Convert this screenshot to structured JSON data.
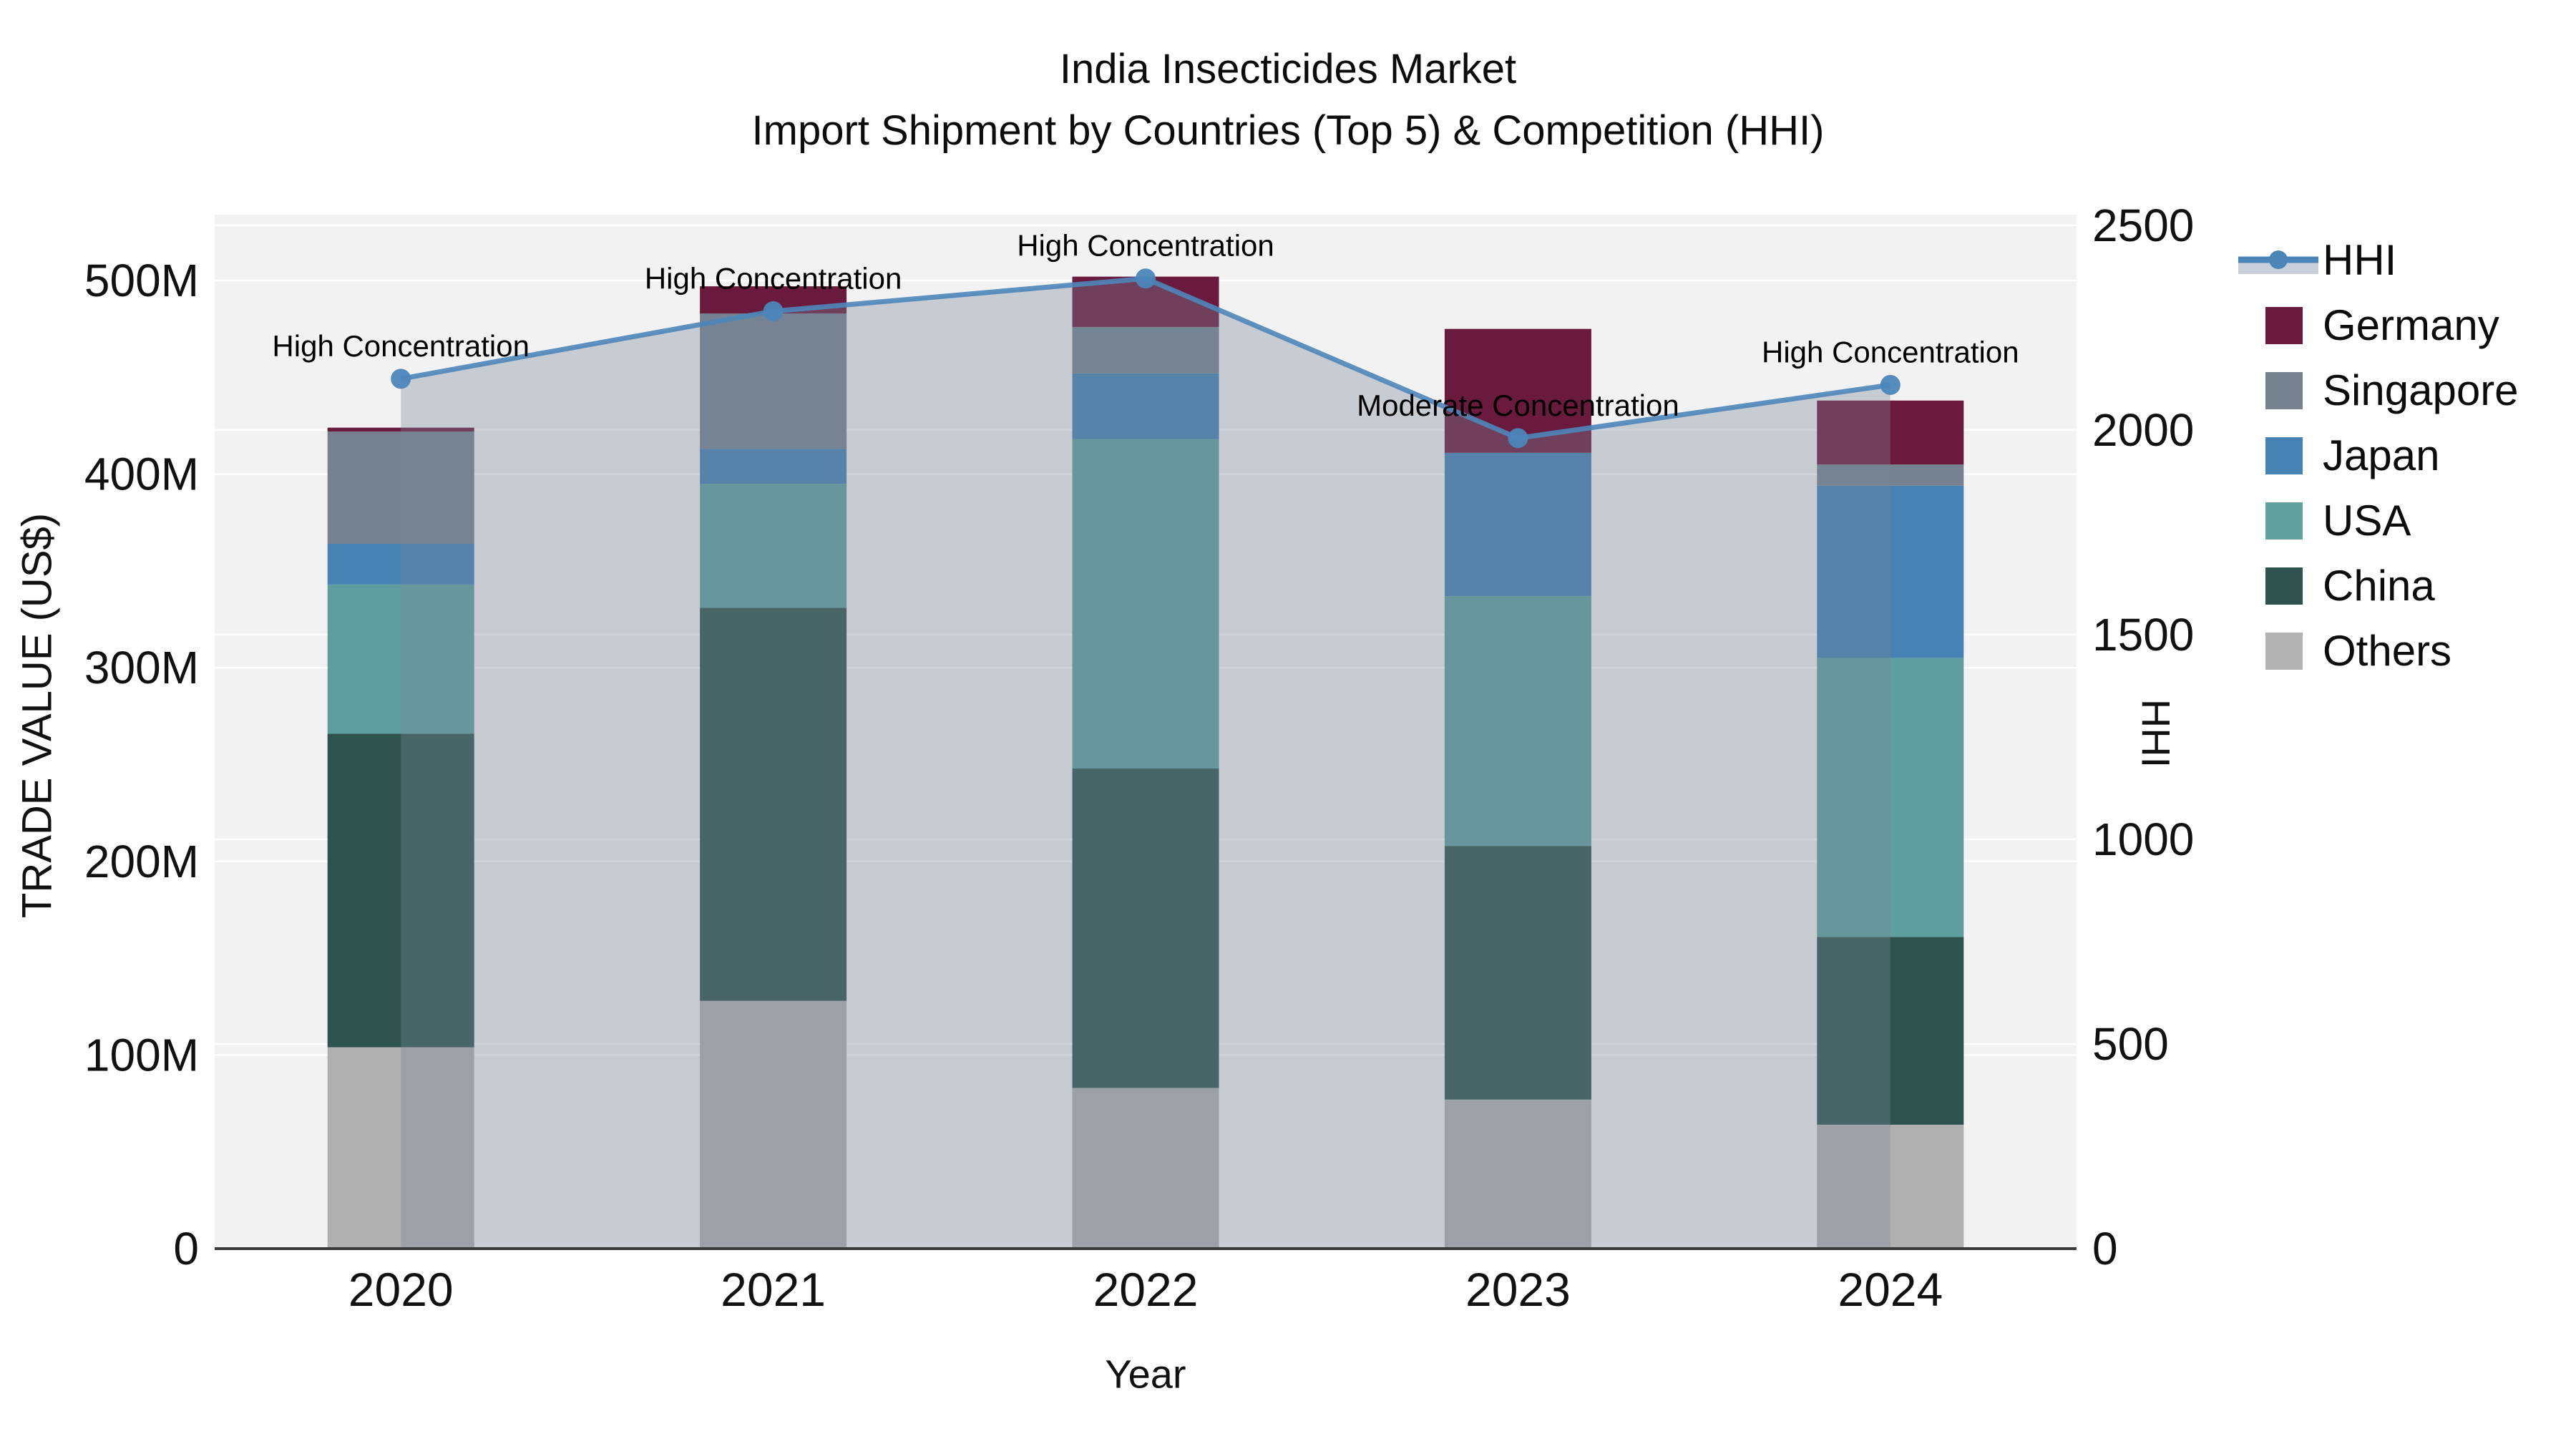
{
  "chart_data": {
    "type": "combo_stacked_bar_line",
    "title": "India Insecticides Market",
    "subtitle": "Import Shipment by Countries (Top 5) & Competition (HHI)",
    "categories": [
      "2020",
      "2021",
      "2022",
      "2023",
      "2024"
    ],
    "x_axis": {
      "title": "Year"
    },
    "y_left": {
      "title": "TRADE VALUE (US$)",
      "unit": "million US$",
      "max": 534,
      "ticks": [
        {
          "v": 0,
          "label": "0"
        },
        {
          "v": 100,
          "label": "100M"
        },
        {
          "v": 200,
          "label": "200M"
        },
        {
          "v": 300,
          "label": "300M"
        },
        {
          "v": 400,
          "label": "400M"
        },
        {
          "v": 500,
          "label": "500M"
        }
      ]
    },
    "y_right": {
      "title": "HHI",
      "max": 2526,
      "ticks": [
        {
          "v": 0,
          "label": "0"
        },
        {
          "v": 500,
          "label": "500"
        },
        {
          "v": 1000,
          "label": "1000"
        },
        {
          "v": 1500,
          "label": "1500"
        },
        {
          "v": 2000,
          "label": "2000"
        },
        {
          "v": 2500,
          "label": "2500"
        }
      ]
    },
    "bar_series": [
      {
        "name": "Others",
        "color": "#B0B0B0",
        "values": [
          104,
          128,
          83,
          77,
          64
        ]
      },
      {
        "name": "China",
        "color": "#2E534E",
        "values": [
          162,
          203,
          165,
          131,
          97
        ]
      },
      {
        "name": "USA",
        "color": "#5F9E9E",
        "values": [
          77,
          64,
          170,
          129,
          144
        ]
      },
      {
        "name": "Japan",
        "color": "#4682B4",
        "values": [
          21,
          18,
          34,
          74,
          89
        ]
      },
      {
        "name": "Singapore",
        "color": "#76828F",
        "values": [
          58,
          70,
          24,
          0,
          11
        ]
      },
      {
        "name": "Germany",
        "color": "#6A1A3C",
        "values": [
          2,
          14,
          26,
          64,
          33
        ]
      }
    ],
    "bar_totals": [
      424,
      497,
      502,
      475,
      438
    ],
    "line_series": {
      "name": "HHI",
      "color": "#4C86B9",
      "area_fill": "rgba(119,136,153,0.35)",
      "values": [
        2125,
        2290,
        2370,
        1980,
        2110
      ]
    },
    "annotations": [
      {
        "year": "2020",
        "text": "High Concentration"
      },
      {
        "year": "2021",
        "text": "High Concentration"
      },
      {
        "year": "2022",
        "text": "High Concentration"
      },
      {
        "year": "2023",
        "text": "Moderate Concentration"
      },
      {
        "year": "2024",
        "text": "High Concentration"
      }
    ],
    "plot_bg": "#F2F2F3",
    "gridline_color": "#FFFFFF",
    "axisline_color": "#3B3B3B"
  },
  "legend": {
    "items": [
      {
        "label": "HHI",
        "type": "line",
        "color": "#4C86B9",
        "band": "#C9D0DB"
      },
      {
        "label": "Germany",
        "type": "swatch",
        "color": "#6A1A3C"
      },
      {
        "label": "Singapore",
        "type": "swatch",
        "color": "#76828F"
      },
      {
        "label": "Japan",
        "type": "swatch",
        "color": "#4682B4"
      },
      {
        "label": "USA",
        "type": "swatch",
        "color": "#62A1A0"
      },
      {
        "label": "China",
        "type": "swatch",
        "color": "#2F5450"
      },
      {
        "label": "Others",
        "type": "swatch",
        "color": "#B3B3B3"
      }
    ]
  }
}
